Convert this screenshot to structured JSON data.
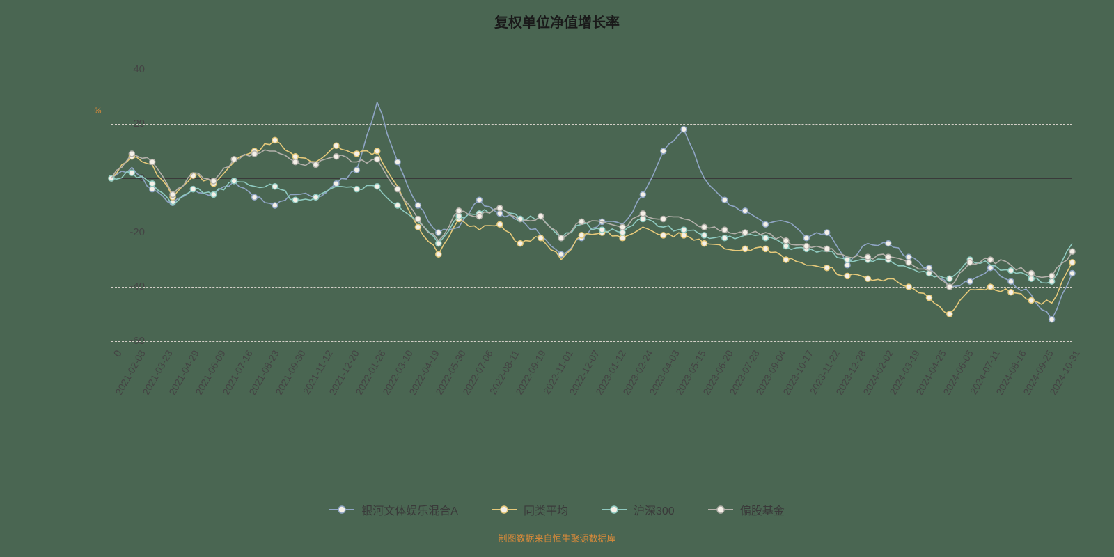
{
  "chart": {
    "type": "line",
    "title": "复权单位净值增长率",
    "title_fontsize": 20,
    "title_color": "#1a1a1a",
    "ylabel": "%",
    "ylabel_color": "#d88a3a",
    "background_color": "#4a6652",
    "grid_color": "#d4d0c8",
    "zero_line_color": "#3a3a3a",
    "tick_color": "#444444",
    "tick_fontsize": 15,
    "xtick_fontsize": 14,
    "xtick_rotation": -60,
    "credit": "制图数据来自恒生聚源数据库",
    "credit_color": "#d88a3a",
    "ylim": [
      -60,
      40
    ],
    "yticks": [
      -60,
      -40,
      -20,
      0,
      20,
      40
    ],
    "x_origin_label": "0",
    "x_labels": [
      "2021-02-08",
      "2021-03-23",
      "2021-04-29",
      "2021-06-09",
      "2021-07-16",
      "2021-08-23",
      "2021-09-30",
      "2021-11-12",
      "2021-12-20",
      "2022-01-26",
      "2022-03-10",
      "2022-04-19",
      "2022-05-30",
      "2022-07-06",
      "2022-08-11",
      "2022-09-19",
      "2022-11-01",
      "2022-12-07",
      "2023-01-12",
      "2023-02-24",
      "2023-04-03",
      "2023-05-15",
      "2023-06-20",
      "2023-07-28",
      "2023-09-04",
      "2023-10-17",
      "2023-11-22",
      "2023-12-28",
      "2024-02-02",
      "2024-03-19",
      "2024-04-25",
      "2024-06-05",
      "2024-07-11",
      "2024-08-16",
      "2024-09-25",
      "2024-10-31"
    ],
    "line_width": 1.6,
    "marker_fill": "#f5f0e8",
    "marker_radius": 4,
    "marker_border_width": 1.5,
    "series": [
      {
        "name": "银河文体娱乐混合A",
        "color": "#8fa5c4",
        "data": [
          0,
          4,
          -4,
          -9,
          -4,
          -6,
          -1,
          -7,
          -10,
          -6,
          -7,
          -2,
          3,
          28,
          6,
          -10,
          -20,
          -18,
          -8,
          -13,
          -15,
          -21,
          -28,
          -22,
          -16,
          -17,
          -6,
          10,
          18,
          0,
          -8,
          -12,
          -17,
          -16,
          -22,
          -20,
          -32,
          -24,
          -24,
          -29,
          -33,
          -40,
          -38,
          -33,
          -38,
          -43,
          -52,
          -35
        ]
      },
      {
        "name": "同类平均",
        "color": "#e6c97a",
        "data": [
          0,
          8,
          5,
          -7,
          1,
          -2,
          6,
          10,
          14,
          8,
          6,
          12,
          9,
          10,
          -3,
          -18,
          -28,
          -15,
          -19,
          -17,
          -24,
          -22,
          -30,
          -21,
          -20,
          -22,
          -18,
          -21,
          -21,
          -24,
          -26,
          -26,
          -26,
          -30,
          -32,
          -33,
          -36,
          -37,
          -37,
          -40,
          -44,
          -50,
          -41,
          -40,
          -42,
          -45,
          -46,
          -31
        ]
      },
      {
        "name": "沪深300",
        "color": "#8fcac0",
        "data": [
          0,
          2,
          -2,
          -10,
          -4,
          -6,
          -1,
          -3,
          -3,
          -8,
          -7,
          -3,
          -4,
          -3,
          -10,
          -16,
          -24,
          -14,
          -13,
          -11,
          -15,
          -14,
          -22,
          -17,
          -19,
          -20,
          -15,
          -18,
          -19,
          -21,
          -22,
          -21,
          -22,
          -25,
          -26,
          -27,
          -30,
          -30,
          -30,
          -33,
          -35,
          -37,
          -30,
          -32,
          -34,
          -37,
          -38,
          -24
        ]
      },
      {
        "name": "偏股基金",
        "color": "#b3b0aa",
        "data": [
          0,
          9,
          6,
          -6,
          2,
          -1,
          7,
          9,
          10,
          6,
          5,
          8,
          6,
          7,
          -4,
          -15,
          -23,
          -12,
          -14,
          -11,
          -16,
          -14,
          -22,
          -16,
          -16,
          -18,
          -13,
          -15,
          -15,
          -18,
          -19,
          -20,
          -20,
          -23,
          -25,
          -26,
          -29,
          -29,
          -29,
          -31,
          -34,
          -40,
          -31,
          -30,
          -32,
          -35,
          -36,
          -27
        ]
      }
    ],
    "legend_fontsize": 16,
    "legend_text_color": "#3a3a3a"
  }
}
